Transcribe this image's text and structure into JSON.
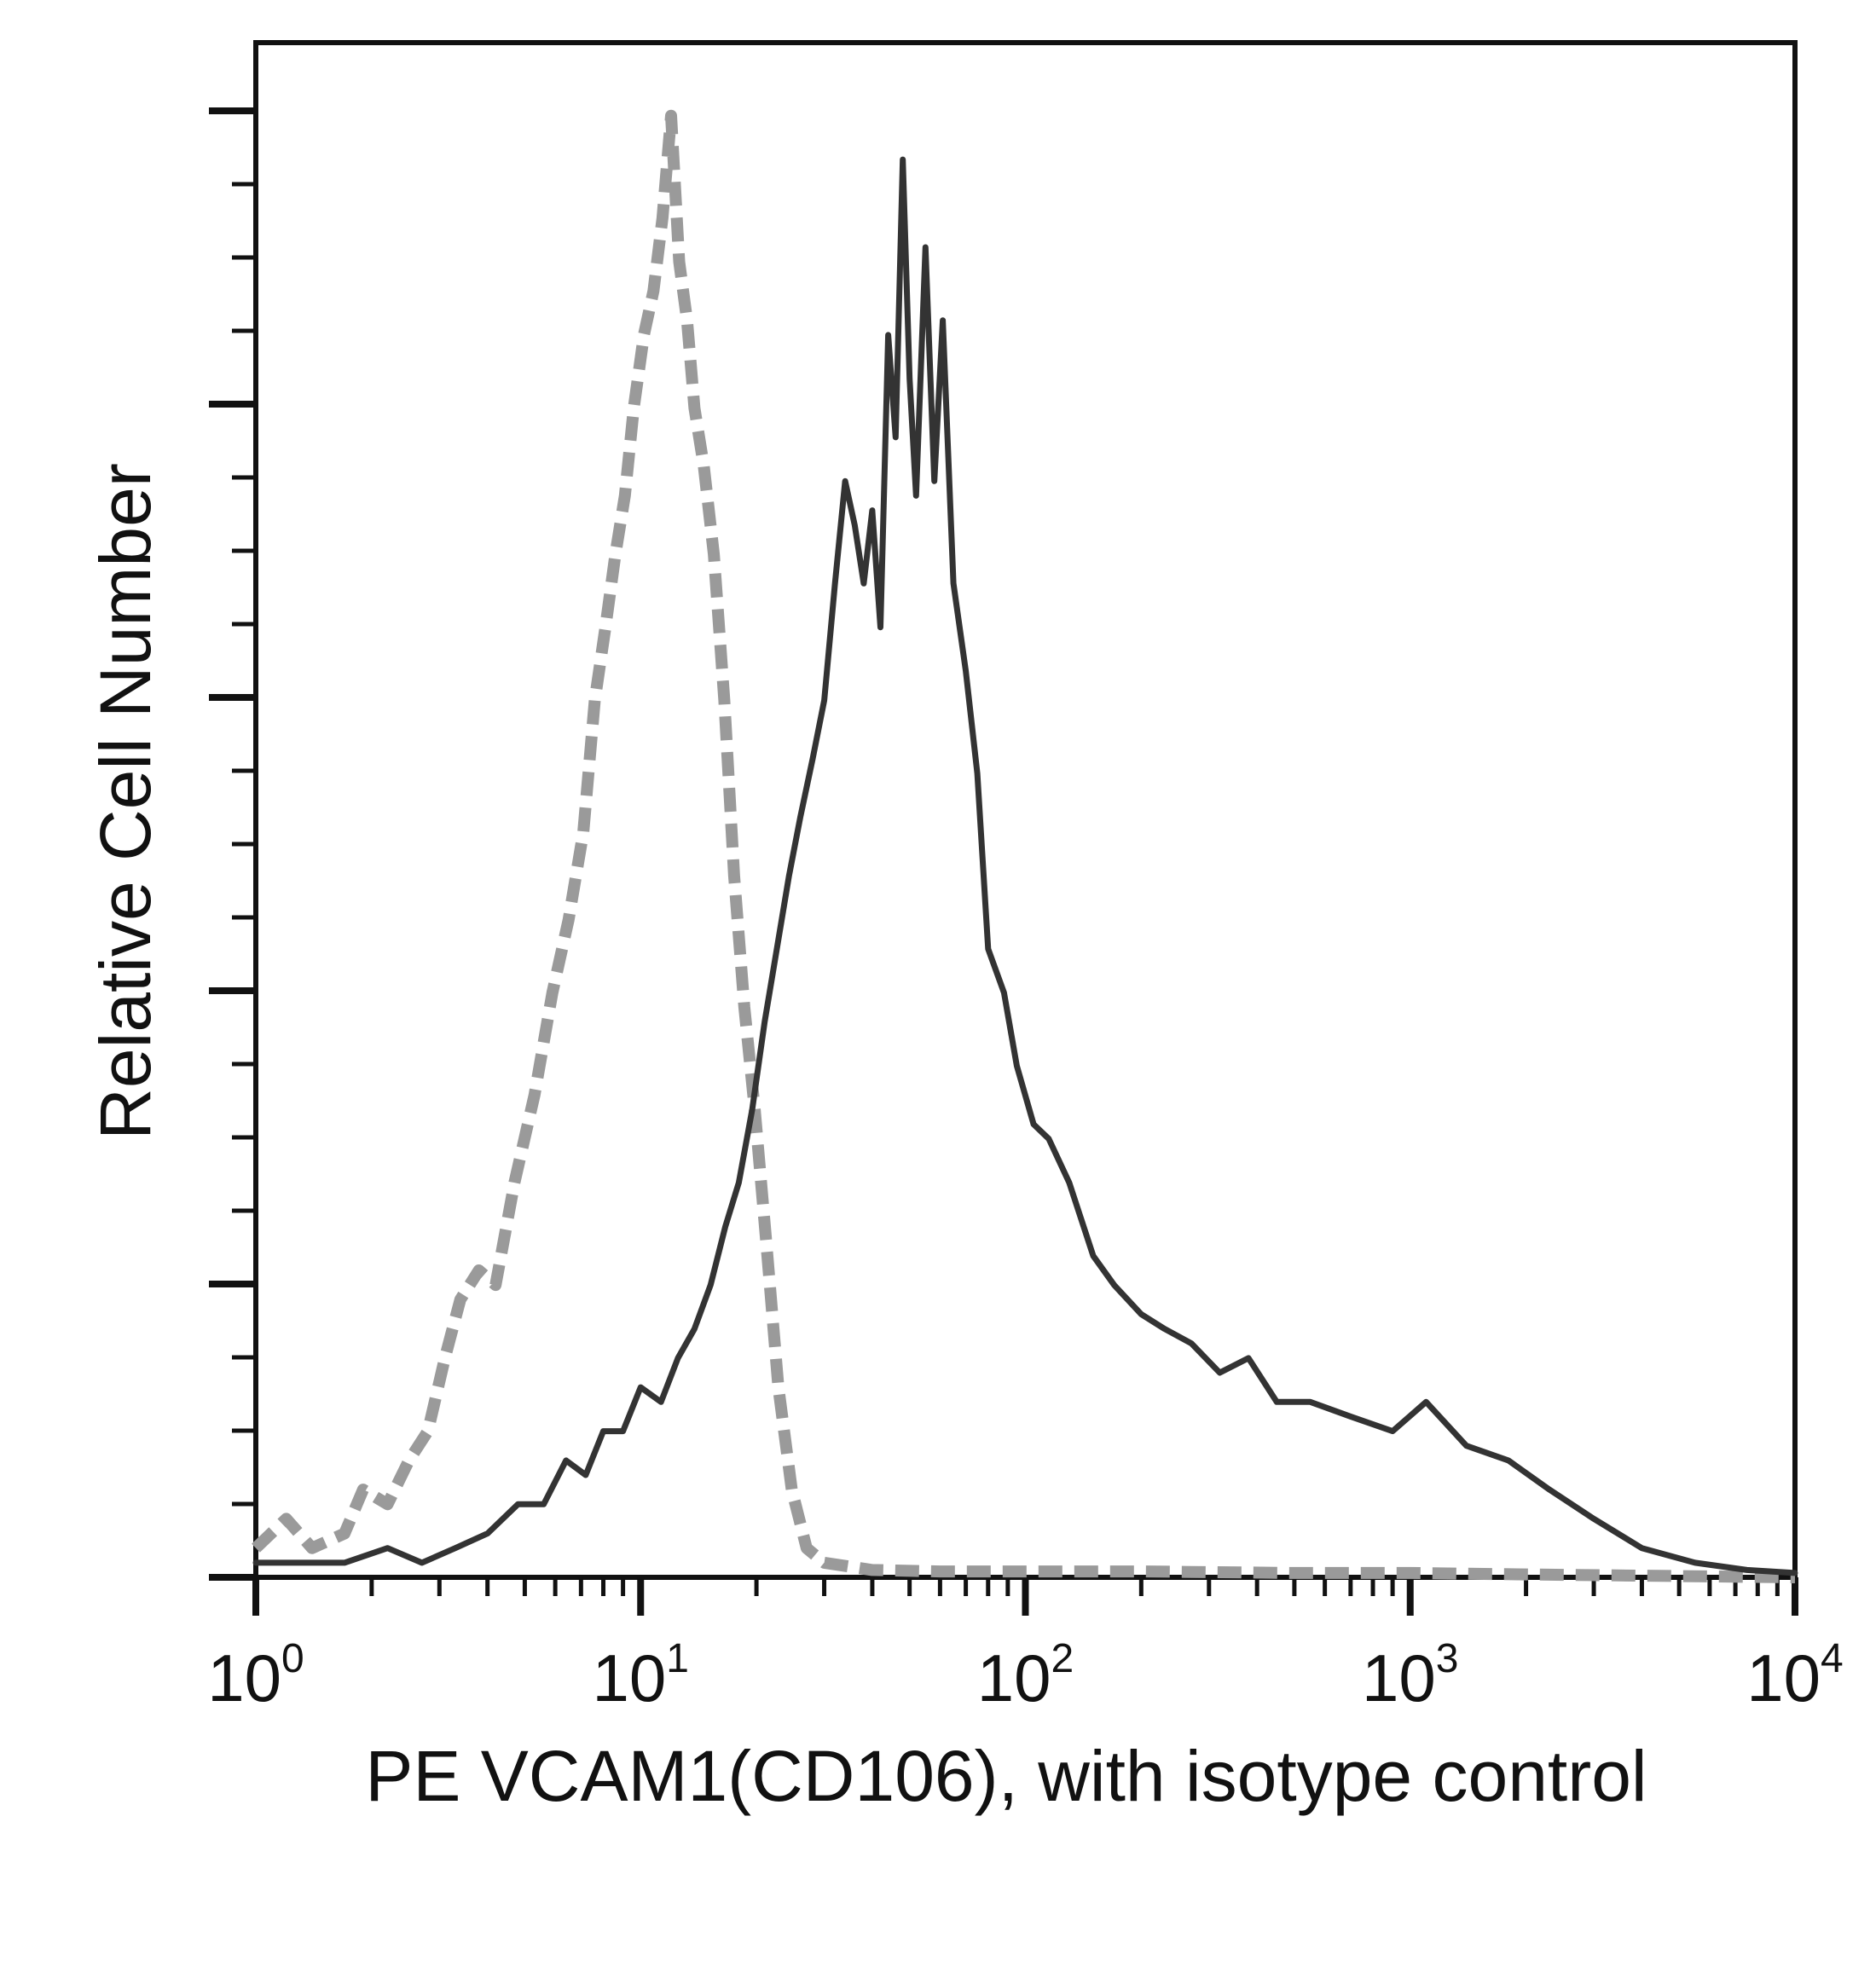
{
  "chart_data": {
    "type": "line",
    "title": "",
    "xlabel": "PE VCAM1(CD106), with isotype control",
    "ylabel": "Relative Cell Number",
    "xscale": "log",
    "xlim": [
      1,
      10000
    ],
    "ylim": [
      0,
      1.05
    ],
    "grid": false,
    "x_tick_labels": [
      {
        "base": "10",
        "exp": "0"
      },
      {
        "base": "10",
        "exp": "1"
      },
      {
        "base": "10",
        "exp": "2"
      },
      {
        "base": "10",
        "exp": "3"
      },
      {
        "base": "10",
        "exp": "4"
      }
    ],
    "series": [
      {
        "style": "dashed",
        "color": "#9a9a9a",
        "x": [
          1.0,
          1.2,
          1.4,
          1.7,
          1.9,
          2.2,
          2.5,
          2.8,
          3.1,
          3.4,
          3.8,
          4.2,
          4.7,
          5.3,
          5.9,
          6.5,
          7.1,
          7.6,
          8.1,
          8.6,
          9.1,
          9.6,
          10.2,
          10.8,
          11.4,
          12.0,
          12.6,
          13.2,
          13.8,
          14.6,
          15.5,
          16.5,
          17.5,
          18.6,
          19.8,
          21.2,
          22.8,
          24.7,
          27.0,
          30.0,
          40.0,
          60.0,
          100.0,
          200.0,
          500.0,
          1000.0,
          2000.0,
          10000.0
        ],
        "values": [
          0.02,
          0.04,
          0.02,
          0.03,
          0.06,
          0.05,
          0.08,
          0.1,
          0.15,
          0.19,
          0.21,
          0.2,
          0.27,
          0.33,
          0.4,
          0.45,
          0.51,
          0.6,
          0.65,
          0.7,
          0.74,
          0.8,
          0.85,
          0.88,
          0.93,
          1.0,
          0.9,
          0.86,
          0.8,
          0.76,
          0.7,
          0.6,
          0.48,
          0.39,
          0.32,
          0.23,
          0.13,
          0.06,
          0.02,
          0.01,
          0.005,
          0.004,
          0.004,
          0.004,
          0.003,
          0.003,
          0.002,
          0.0
        ]
      },
      {
        "style": "solid",
        "color": "#333333",
        "x": [
          1.0,
          1.3,
          1.7,
          2.2,
          2.7,
          3.3,
          4.0,
          4.8,
          5.6,
          6.4,
          7.2,
          8.0,
          9.0,
          10.0,
          11.3,
          12.5,
          13.8,
          15.2,
          16.6,
          18.0,
          19.5,
          21.0,
          22.6,
          24.3,
          26.0,
          28.0,
          30.0,
          32.0,
          34.0,
          36.0,
          38.0,
          40.0,
          42.0,
          44.0,
          46.0,
          48.0,
          50.0,
          52.0,
          55.0,
          58.0,
          61.0,
          65.0,
          70.0,
          75.0,
          80.0,
          88.0,
          95.0,
          105.0,
          115.0,
          130.0,
          150.0,
          170.0,
          200.0,
          230.0,
          270.0,
          320.0,
          380.0,
          450.0,
          550.0,
          700.0,
          900.0,
          1100.0,
          1400.0,
          1800.0,
          2300.0,
          3000.0,
          4000.0,
          5500.0,
          7500.0,
          10000.0
        ],
        "values": [
          0.01,
          0.01,
          0.01,
          0.02,
          0.01,
          0.02,
          0.03,
          0.05,
          0.05,
          0.08,
          0.07,
          0.1,
          0.1,
          0.13,
          0.12,
          0.15,
          0.17,
          0.2,
          0.24,
          0.27,
          0.32,
          0.38,
          0.43,
          0.48,
          0.52,
          0.56,
          0.6,
          0.68,
          0.75,
          0.72,
          0.68,
          0.73,
          0.65,
          0.85,
          0.78,
          0.97,
          0.82,
          0.74,
          0.91,
          0.75,
          0.86,
          0.68,
          0.62,
          0.55,
          0.43,
          0.4,
          0.35,
          0.31,
          0.3,
          0.27,
          0.22,
          0.2,
          0.18,
          0.17,
          0.16,
          0.14,
          0.15,
          0.12,
          0.12,
          0.11,
          0.1,
          0.12,
          0.09,
          0.08,
          0.06,
          0.04,
          0.02,
          0.01,
          0.005,
          0.003
        ]
      }
    ]
  }
}
